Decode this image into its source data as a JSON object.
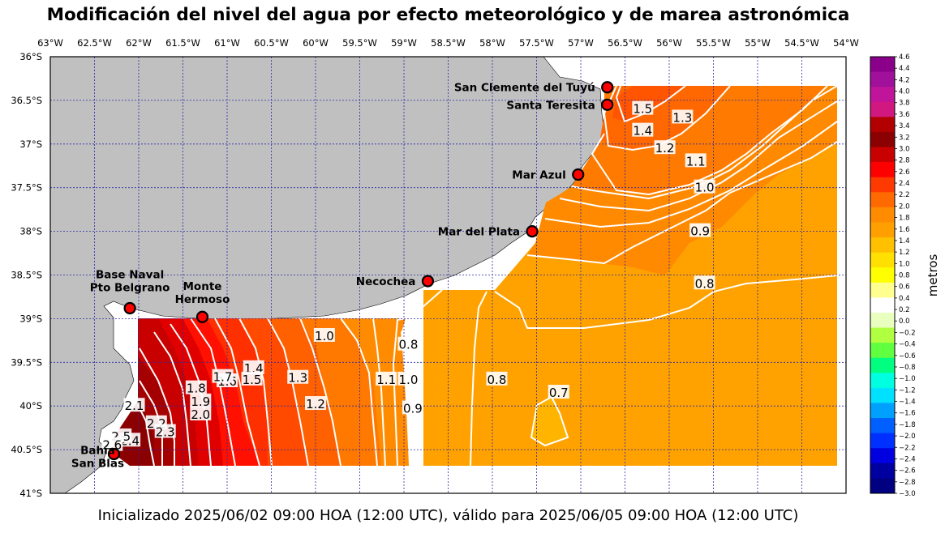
{
  "title": "Modificación del nivel del agua por efecto meteorológico y de marea astronómica",
  "footer": "Inicializado 2025/06/02 09:00 HOA (12:00 UTC), válido para 2025/06/05 09:00 HOA (12:00 UTC)",
  "lon_ticks": [
    "63°W",
    "62.5°W",
    "62°W",
    "61.5°W",
    "61°W",
    "60.5°W",
    "60°W",
    "59.5°W",
    "59°W",
    "58.5°W",
    "58°W",
    "57.5°W",
    "57°W",
    "56.5°W",
    "56°W",
    "55.5°W",
    "55°W",
    "54.5°W",
    "54°W"
  ],
  "lat_ticks": [
    "36°S",
    "36.5°S",
    "37°S",
    "37.5°S",
    "38°S",
    "38.5°S",
    "39°S",
    "39.5°S",
    "40°S",
    "40.5°S",
    "41°S"
  ],
  "colorbar": {
    "label": "metros",
    "min": -3.0,
    "max": 4.6,
    "ticks": [
      "4.6",
      "4.4",
      "4.2",
      "4.0",
      "3.8",
      "3.6",
      "3.4",
      "3.2",
      "3.0",
      "2.8",
      "2.6",
      "2.4",
      "2.2",
      "2.0",
      "1.8",
      "1.6",
      "1.4",
      "1.2",
      "1.0",
      "0.8",
      "0.6",
      "0.4",
      "0.2",
      "0.0",
      "−0.2",
      "−0.4",
      "−0.6",
      "−0.8",
      "−1.0",
      "−1.2",
      "−1.4",
      "−1.6",
      "−1.8",
      "−2.0",
      "−2.2",
      "−2.4",
      "−2.6",
      "−2.8",
      "−3.0"
    ],
    "colors": [
      "#8b008b",
      "#a0109a",
      "#c0149a",
      "#d01880",
      "#b20000",
      "#8b0000",
      "#c80000",
      "#ff0000",
      "#ff3a00",
      "#ff6a00",
      "#ff8c00",
      "#ffa000",
      "#ffc000",
      "#ffe000",
      "#ffff00",
      "#ffff90",
      "#ffffff",
      "#e8ffc0",
      "#b0ff40",
      "#60ff40",
      "#00ff80",
      "#00ffe0",
      "#00e0ff",
      "#00a0ff",
      "#0060ff",
      "#0030ff",
      "#0000e0",
      "#0000a0",
      "#000080"
    ]
  },
  "cities": [
    {
      "name": "San Clemente del Tuyú",
      "lon": -56.7,
      "lat": -36.35
    },
    {
      "name": "Santa Teresita",
      "lon": -56.7,
      "lat": -36.55
    },
    {
      "name": "Mar Azul",
      "lon": -57.03,
      "lat": -37.35
    },
    {
      "name": "Mar del Plata",
      "lon": -57.55,
      "lat": -38.0
    },
    {
      "name": "Necochea",
      "lon": -58.73,
      "lat": -38.57
    },
    {
      "name": "Base Naval Pto Belgrano",
      "line1": "Base Naval",
      "line2": "Pto Belgrano",
      "lon": -62.1,
      "lat": -38.88
    },
    {
      "name": "Monte Hermoso",
      "line1": "Monte",
      "line2": "Hermoso",
      "lon": -61.28,
      "lat": -38.98
    },
    {
      "name": "Bahía San Blas",
      "line1": "Bahía",
      "line2": "San Blas",
      "lon": -62.28,
      "lat": -40.55
    }
  ],
  "contour_labels": [
    {
      "text": "1.5",
      "lon": -56.3,
      "lat": -36.6
    },
    {
      "text": "1.4",
      "lon": -56.3,
      "lat": -36.85
    },
    {
      "text": "1.3",
      "lon": -55.85,
      "lat": -36.7
    },
    {
      "text": "1.2",
      "lon": -56.05,
      "lat": -37.05
    },
    {
      "text": "1.1",
      "lon": -55.7,
      "lat": -37.2
    },
    {
      "text": "1.0",
      "lon": -55.6,
      "lat": -37.5
    },
    {
      "text": "0.9",
      "lon": -55.65,
      "lat": -38.0
    },
    {
      "text": "0.8",
      "lon": -55.6,
      "lat": -38.6
    },
    {
      "text": "1.0",
      "lon": -59.9,
      "lat": -39.2
    },
    {
      "text": "0.8",
      "lon": -58.95,
      "lat": -39.3
    },
    {
      "text": "1.1",
      "lon": -59.2,
      "lat": -39.7
    },
    {
      "text": "1.0",
      "lon": -58.95,
      "lat": -39.7
    },
    {
      "text": "0.9",
      "lon": -58.9,
      "lat": -40.03
    },
    {
      "text": "0.8",
      "lon": -57.95,
      "lat": -39.7
    },
    {
      "text": "0.7",
      "lon": -57.25,
      "lat": -39.85
    },
    {
      "text": "1.3",
      "lon": -60.2,
      "lat": -39.68
    },
    {
      "text": "1.2",
      "lon": -60.0,
      "lat": -39.98
    },
    {
      "text": "1.4",
      "lon": -60.7,
      "lat": -39.57
    },
    {
      "text": "1.5",
      "lon": -60.72,
      "lat": -39.7
    },
    {
      "text": "1.6",
      "lon": -61.0,
      "lat": -39.72
    },
    {
      "text": "1.7",
      "lon": -61.05,
      "lat": -39.67
    },
    {
      "text": "1.8",
      "lon": -61.35,
      "lat": -39.8
    },
    {
      "text": "1.9",
      "lon": -61.3,
      "lat": -39.95
    },
    {
      "text": "2.0",
      "lon": -61.3,
      "lat": -40.1
    },
    {
      "text": "2.1",
      "lon": -62.05,
      "lat": -40.0
    },
    {
      "text": "2.2",
      "lon": -61.8,
      "lat": -40.2
    },
    {
      "text": "2.3",
      "lon": -61.7,
      "lat": -40.3
    },
    {
      "text": "2.4",
      "lon": -62.1,
      "lat": -40.4
    },
    {
      "text": "2.5",
      "lon": -62.2,
      "lat": -40.35
    },
    {
      "text": "2.6",
      "lon": -62.3,
      "lat": -40.45
    }
  ]
}
